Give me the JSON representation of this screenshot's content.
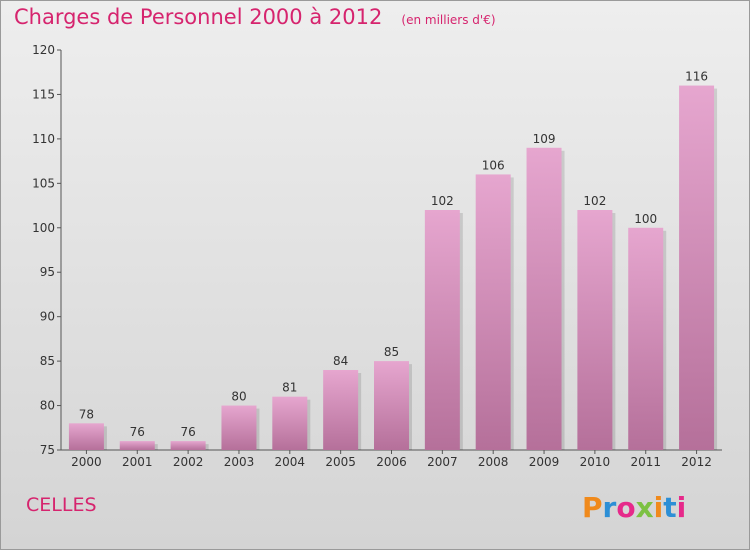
{
  "chart_data": {
    "type": "bar",
    "title": "Charges de Personnel 2000 à 2012",
    "subtitle": "(en milliers d'€)",
    "categories": [
      "2000",
      "2001",
      "2002",
      "2003",
      "2004",
      "2005",
      "2006",
      "2007",
      "2008",
      "2009",
      "2010",
      "2011",
      "2012"
    ],
    "values": [
      78,
      76,
      76,
      80,
      81,
      84,
      85,
      102,
      106,
      109,
      102,
      100,
      116
    ],
    "ylim": [
      75,
      120
    ],
    "yticks": [
      75,
      80,
      85,
      90,
      95,
      100,
      105,
      110,
      115,
      120
    ],
    "bar_color": "#d98fba",
    "label_color": "#333333",
    "grid": false,
    "xlabel": "",
    "ylabel": ""
  },
  "commune": "CELLES",
  "logo": {
    "text": "Proxiti",
    "letter_colors": [
      "#f08a1c",
      "#2c8fd6",
      "#e6298a",
      "#7cc142",
      "#f08a1c",
      "#2c8fd6",
      "#e6298a"
    ]
  }
}
